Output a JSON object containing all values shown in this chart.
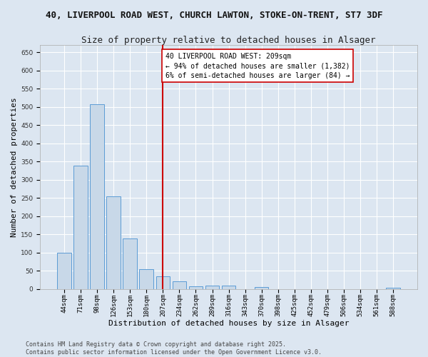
{
  "title_line1": "40, LIVERPOOL ROAD WEST, CHURCH LAWTON, STOKE-ON-TRENT, ST7 3DF",
  "title_line2": "Size of property relative to detached houses in Alsager",
  "xlabel": "Distribution of detached houses by size in Alsager",
  "ylabel": "Number of detached properties",
  "categories": [
    "44sqm",
    "71sqm",
    "98sqm",
    "126sqm",
    "153sqm",
    "180sqm",
    "207sqm",
    "234sqm",
    "262sqm",
    "289sqm",
    "316sqm",
    "343sqm",
    "370sqm",
    "398sqm",
    "425sqm",
    "452sqm",
    "479sqm",
    "506sqm",
    "534sqm",
    "561sqm",
    "588sqm"
  ],
  "values": [
    100,
    338,
    507,
    255,
    138,
    55,
    35,
    22,
    8,
    10,
    10,
    0,
    5,
    0,
    0,
    0,
    0,
    0,
    0,
    0,
    3
  ],
  "bar_color": "#c8d8e8",
  "bar_edge_color": "#5b9bd5",
  "vline_x": 6,
  "vline_color": "#cc0000",
  "annotation_text": "40 LIVERPOOL ROAD WEST: 209sqm\n← 94% of detached houses are smaller (1,382)\n6% of semi-detached houses are larger (84) →",
  "annotation_box_color": "#ffffff",
  "annotation_box_edge": "#cc0000",
  "ylim": [
    0,
    670
  ],
  "yticks": [
    0,
    50,
    100,
    150,
    200,
    250,
    300,
    350,
    400,
    450,
    500,
    550,
    600,
    650
  ],
  "footer_line1": "Contains HM Land Registry data © Crown copyright and database right 2025.",
  "footer_line2": "Contains public sector information licensed under the Open Government Licence v3.0.",
  "background_color": "#dce6f1",
  "plot_bg_color": "#dce6f1",
  "grid_color": "#ffffff",
  "title_fontsize": 9,
  "subtitle_fontsize": 9,
  "axis_label_fontsize": 8,
  "tick_fontsize": 6.5,
  "annotation_fontsize": 7,
  "footer_fontsize": 6
}
